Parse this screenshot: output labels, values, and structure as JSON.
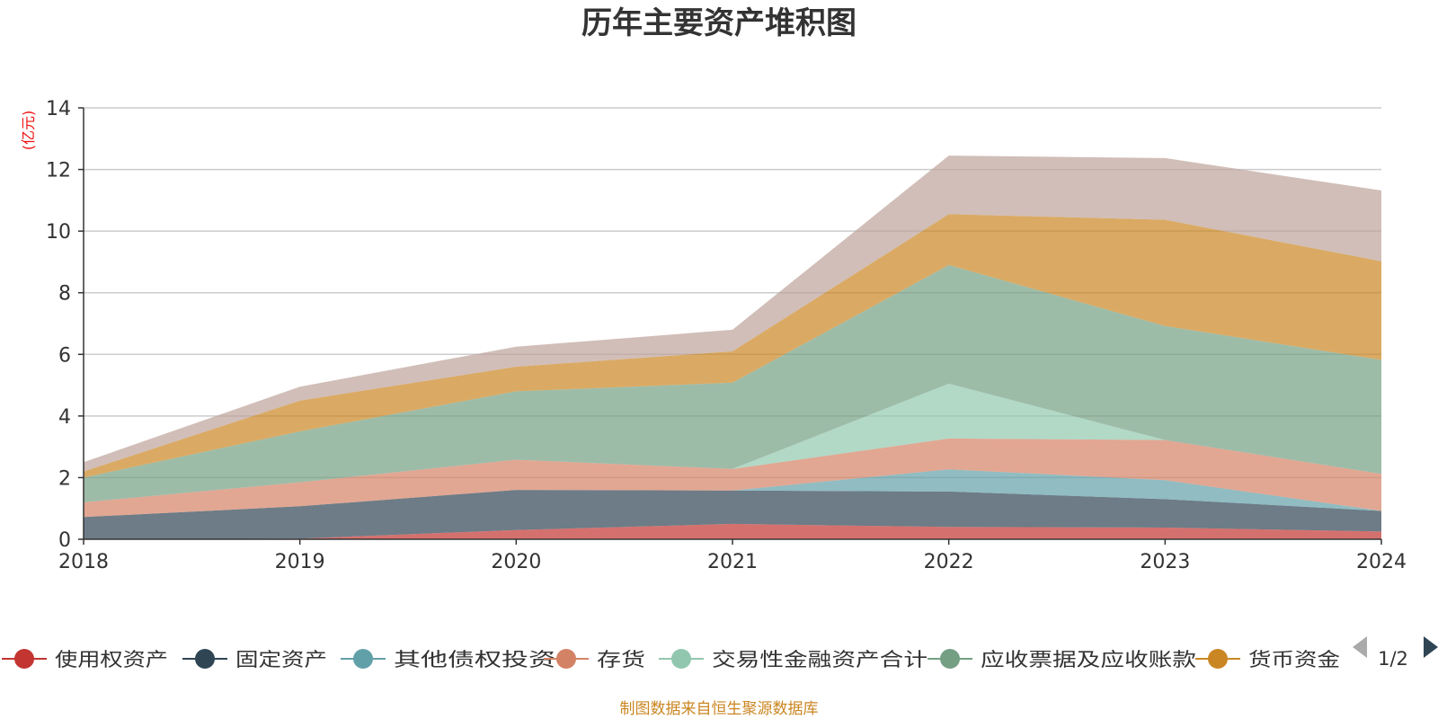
{
  "chart_data": {
    "type": "area",
    "title": "历年主要资产堆积图",
    "y_unit_label": "(亿元)",
    "source_note": "制图数据来自恒生聚源数据库",
    "x": [
      "2018",
      "2019",
      "2020",
      "2021",
      "2022",
      "2023",
      "2024"
    ],
    "ylim": [
      0,
      14
    ],
    "y_ticks": [
      "0",
      "2",
      "4",
      "6",
      "8",
      "10",
      "12",
      "14"
    ],
    "grid": true,
    "stacked": true,
    "legend_position": "bottom",
    "legend_page": "1/2",
    "series": [
      {
        "name": "使用权资产",
        "color": "#c23531",
        "values": [
          0,
          0.02,
          0.3,
          0.5,
          0.4,
          0.38,
          0.25
        ]
      },
      {
        "name": "固定资产",
        "color": "#2f4554",
        "values": [
          0.72,
          1.05,
          1.3,
          1.08,
          1.15,
          0.92,
          0.67
        ]
      },
      {
        "name": "其他债权投资",
        "color": "#61a0a8",
        "values": [
          0,
          0,
          0,
          0,
          0.72,
          0.62,
          0
        ]
      },
      {
        "name": "存货",
        "color": "#d48265",
        "values": [
          0.48,
          0.78,
          0.98,
          0.7,
          1.0,
          1.3,
          1.2
        ]
      },
      {
        "name": "交易性金融资产合计",
        "color": "#91c7ae",
        "values": [
          0,
          0,
          0,
          0,
          1.78,
          0,
          0
        ]
      },
      {
        "name": "应收票据及应收账款",
        "color": "#749f83",
        "values": [
          0.8,
          1.65,
          2.22,
          2.8,
          3.85,
          3.7,
          3.7
        ]
      },
      {
        "name": "货币资金",
        "color": "#ca8622",
        "values": [
          0.2,
          1.0,
          0.8,
          1.02,
          1.65,
          3.45,
          3.2
        ]
      },
      {
        "color": "#bda29a",
        "values": [
          0.3,
          0.45,
          0.65,
          0.7,
          1.9,
          2.0,
          2.3
        ]
      }
    ]
  }
}
